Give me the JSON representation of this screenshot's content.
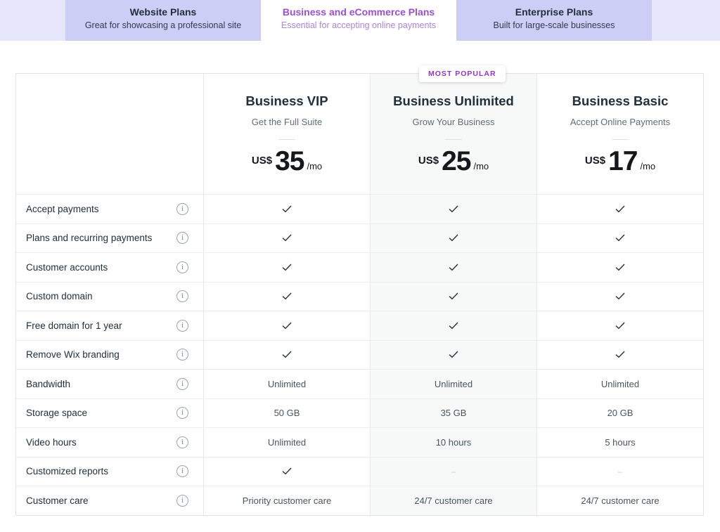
{
  "tabs": [
    {
      "title": "Website Plans",
      "subtitle": "Great for showcasing a professional site",
      "active": false
    },
    {
      "title": "Business and eCommerce Plans",
      "subtitle": "Essential for accepting online payments",
      "active": true
    },
    {
      "title": "Enterprise Plans",
      "subtitle": "Built for large-scale businesses",
      "active": false
    }
  ],
  "badge": {
    "label": "MOST POPULAR"
  },
  "plans": [
    {
      "name": "Business VIP",
      "tagline": "Get the Full Suite",
      "currency": "US$",
      "price": "35",
      "period": "/mo",
      "highlighted": false
    },
    {
      "name": "Business Unlimited",
      "tagline": "Grow Your Business",
      "currency": "US$",
      "price": "25",
      "period": "/mo",
      "highlighted": true
    },
    {
      "name": "Business Basic",
      "tagline": "Accept Online Payments",
      "currency": "US$",
      "price": "17",
      "period": "/mo",
      "highlighted": false
    }
  ],
  "features": [
    {
      "label": "Accept payments",
      "values": [
        "check",
        "check",
        "check"
      ]
    },
    {
      "label": "Plans and recurring payments",
      "values": [
        "check",
        "check",
        "check"
      ]
    },
    {
      "label": "Customer accounts",
      "values": [
        "check",
        "check",
        "check"
      ]
    },
    {
      "label": "Custom domain",
      "values": [
        "check",
        "check",
        "check"
      ]
    },
    {
      "label": "Free domain for 1 year",
      "values": [
        "check",
        "check",
        "check"
      ]
    },
    {
      "label": "Remove Wix branding",
      "values": [
        "check",
        "check",
        "check"
      ]
    },
    {
      "label": "Bandwidth",
      "values": [
        "Unlimited",
        "Unlimited",
        "Unlimited"
      ]
    },
    {
      "label": "Storage space",
      "values": [
        "50 GB",
        "35 GB",
        "20 GB"
      ]
    },
    {
      "label": "Video hours",
      "values": [
        "Unlimited",
        "10 hours",
        "5 hours"
      ]
    },
    {
      "label": "Customized reports",
      "values": [
        "check",
        "dash",
        "dash"
      ]
    },
    {
      "label": "Customer care",
      "values": [
        "Priority customer care",
        "24/7 customer care",
        "24/7 customer care"
      ]
    }
  ],
  "icons": {
    "info": "info-icon",
    "check": "check-icon",
    "info_glyph": "i",
    "dash_glyph": "–"
  },
  "colors": {
    "accent_purple": "#9b4fd2",
    "badge_purple": "#9633cf",
    "tab_strip_bg": "#e6e6fb",
    "inactive_tab_bg": "#cdcef5",
    "heading_navy": "#20303c",
    "highlight_column_bg": "#f7f8f8",
    "check": "#20303c"
  }
}
